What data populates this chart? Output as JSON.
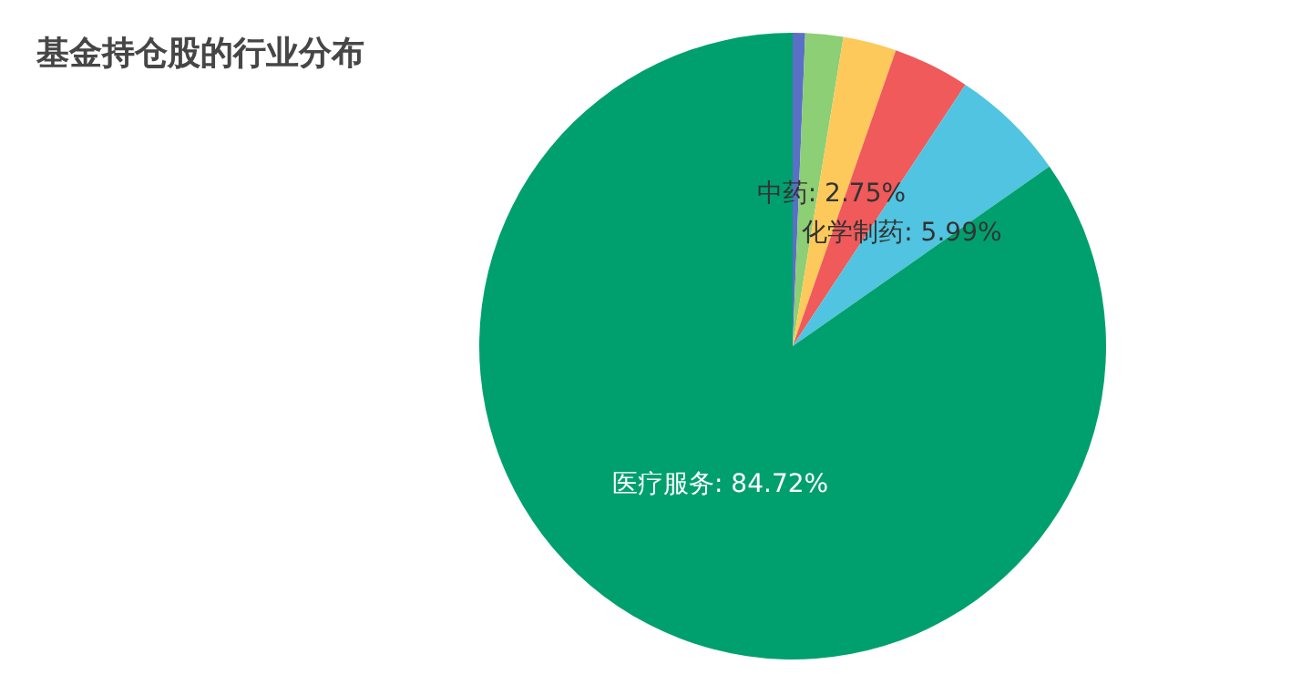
{
  "chart_data": {
    "type": "pie",
    "title": "基金持仓股的行业分布",
    "categories": [
      null,
      null,
      "中药",
      null,
      "化学制药",
      "医疗服务"
    ],
    "values": [
      0.64,
      1.95,
      2.75,
      3.95,
      5.99,
      84.72
    ],
    "colors": [
      "#5a6fc6",
      "#8ccf75",
      "#fdc95b",
      "#f05a5a",
      "#50c4e0",
      "#00a06e"
    ],
    "value_labels": [
      null,
      null,
      "2.75%",
      null,
      "5.99%",
      "84.72%"
    ]
  }
}
